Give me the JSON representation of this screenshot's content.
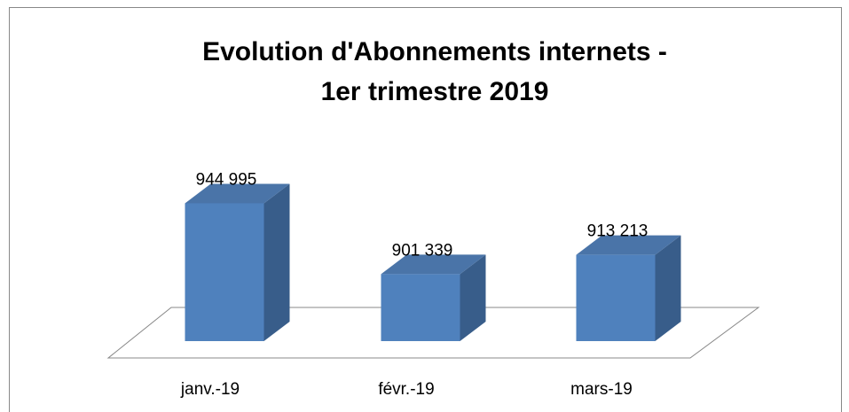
{
  "chart_data": {
    "type": "bar3d",
    "title": [
      "Evolution d'Abonnements internets -",
      "1er  trimestre 2019"
    ],
    "categories": [
      "janv.-19",
      "févr.-19",
      "mars-19"
    ],
    "values": [
      944995,
      901339,
      913213
    ],
    "value_labels": [
      "944 995",
      "901 339",
      "913 213"
    ],
    "color": "#4f81bd",
    "ylim": [
      860000,
      960000
    ]
  }
}
